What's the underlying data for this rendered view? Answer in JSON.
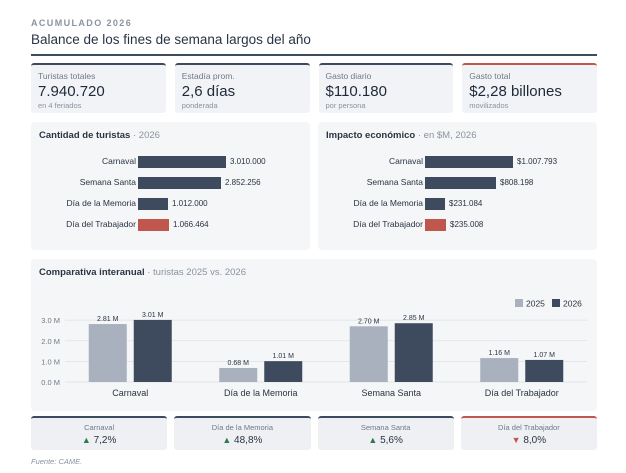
{
  "header": {
    "kicker": "ACUMULADO 2026",
    "title": "Balance de los fines de semana largos del año"
  },
  "kpis": [
    {
      "label": "Turistas totales",
      "value": "7.940.720",
      "sub": "en 4 feriados"
    },
    {
      "label": "Estadía prom.",
      "value": "2,6 días",
      "sub": "ponderada"
    },
    {
      "label": "Gasto diario",
      "value": "$110.180",
      "sub": "por persona"
    },
    {
      "label": "Gasto total",
      "value": "$2,28 billones",
      "sub": "movilizados"
    }
  ],
  "colors": {
    "dark": "#3e4b5e",
    "light": "#a8b1bd",
    "red": "#c0574f",
    "up": "#2f7a4a"
  },
  "chart_data": [
    {
      "type": "bar",
      "orientation": "horizontal",
      "title": "Cantidad de turistas",
      "subtitle": "2026",
      "categories": [
        "Carnaval",
        "Semana Santa",
        "Día de la Memoria",
        "Día del Trabajador"
      ],
      "values": [
        3010000,
        2852256,
        1012000,
        1066464
      ],
      "value_labels": [
        "3.010.000",
        "2.852.256",
        "1.012.000",
        "1.066.464"
      ],
      "highlight": [
        false,
        false,
        false,
        true
      ]
    },
    {
      "type": "bar",
      "orientation": "horizontal",
      "title": "Impacto económico",
      "subtitle": "en $M, 2026",
      "categories": [
        "Carnaval",
        "Semana Santa",
        "Día de la Memoria",
        "Día del Trabajador"
      ],
      "values": [
        1007793,
        808198,
        231084,
        235008
      ],
      "value_labels": [
        "$1.007.793",
        "$808.198",
        "$231.084",
        "$235.008"
      ],
      "highlight": [
        false,
        false,
        false,
        true
      ]
    },
    {
      "type": "bar",
      "title": "Comparativa interanual",
      "subtitle": "turistas 2025 vs. 2026",
      "categories": [
        "Carnaval",
        "Día de la Memoria",
        "Semana Santa",
        "Día del Trabajador"
      ],
      "series": [
        {
          "name": "2025",
          "values": [
            2.81,
            0.68,
            2.7,
            1.16
          ],
          "labels": [
            "2.81 M",
            "0.68 M",
            "2.70 M",
            "1.16 M"
          ]
        },
        {
          "name": "2026",
          "values": [
            3.01,
            1.01,
            2.85,
            1.07
          ],
          "labels": [
            "3.01 M",
            "1.01 M",
            "2.85 M",
            "1.07 M"
          ]
        }
      ],
      "yticks": [
        "0.0 M",
        "1.0 M",
        "2.0 M",
        "3.0 M"
      ],
      "ytick_values": [
        0,
        1,
        2,
        3
      ],
      "ylim": [
        0,
        3.2
      ],
      "legend_position": "top-right",
      "grid": true
    }
  ],
  "changes": [
    {
      "label": "Carnaval",
      "arrow": "▲",
      "value": "7,2%",
      "dir": "up"
    },
    {
      "label": "Día de la Memoria",
      "arrow": "▲",
      "value": "48,8%",
      "dir": "up"
    },
    {
      "label": "Semana Santa",
      "arrow": "▲",
      "value": "5,6%",
      "dir": "up"
    },
    {
      "label": "Día del Trabajador",
      "arrow": "▼",
      "value": "8,0%",
      "dir": "down"
    }
  ],
  "source": "Fuente: CAME."
}
